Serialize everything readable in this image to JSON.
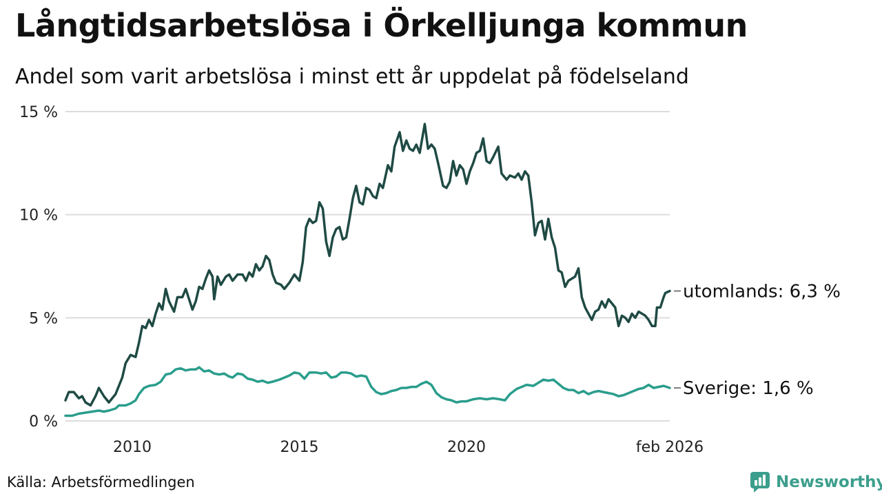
{
  "header": {
    "title": "Långtidsarbetslösa i Örkelljunga kommun",
    "subtitle": "Andel som varit arbetslösa i minst ett år uppdelat på födelseland"
  },
  "footer": {
    "source": "Källa: Arbetsförmedlingen",
    "brand": "Newsworthy"
  },
  "colors": {
    "utomlands": "#1f4a44",
    "sverige": "#2a9d8c",
    "grid": "#dddddd",
    "brand": "#3b9e8c"
  },
  "chart_data": {
    "type": "line",
    "title": "Långtidsarbetslösa i Örkelljunga kommun",
    "subtitle": "Andel som varit arbetslösa i minst ett år uppdelat på födelseland",
    "xlabel": "",
    "ylabel": "",
    "xlim": [
      2008.0,
      2026.083
    ],
    "ylim": [
      0,
      15
    ],
    "x_ticks": [
      {
        "value": 2010,
        "label": "2010"
      },
      {
        "value": 2015,
        "label": "2015"
      },
      {
        "value": 2020,
        "label": "2020"
      },
      {
        "value": 2026.083,
        "label": "feb 2026"
      }
    ],
    "y_ticks": [
      {
        "value": 0,
        "label": "0 %"
      },
      {
        "value": 5,
        "label": "5 %"
      },
      {
        "value": 10,
        "label": "10 %"
      },
      {
        "value": 15,
        "label": "15 %"
      }
    ],
    "grid": true,
    "series": [
      {
        "name": "utomlands",
        "end_label": "utomlands: 6,3 %",
        "points": [
          [
            2008.0,
            1.0
          ],
          [
            2008.1,
            1.4
          ],
          [
            2008.25,
            1.4
          ],
          [
            2008.4,
            1.1
          ],
          [
            2008.5,
            1.2
          ],
          [
            2008.6,
            0.9
          ],
          [
            2008.75,
            0.75
          ],
          [
            2008.9,
            1.2
          ],
          [
            2009.0,
            1.6
          ],
          [
            2009.15,
            1.2
          ],
          [
            2009.3,
            0.9
          ],
          [
            2009.5,
            1.3
          ],
          [
            2009.7,
            2.1
          ],
          [
            2009.8,
            2.8
          ],
          [
            2009.95,
            3.2
          ],
          [
            2010.1,
            3.1
          ],
          [
            2010.2,
            3.8
          ],
          [
            2010.3,
            4.6
          ],
          [
            2010.4,
            4.5
          ],
          [
            2010.5,
            4.9
          ],
          [
            2010.6,
            4.6
          ],
          [
            2010.7,
            5.2
          ],
          [
            2010.8,
            5.7
          ],
          [
            2010.9,
            5.4
          ],
          [
            2011.0,
            6.4
          ],
          [
            2011.1,
            5.8
          ],
          [
            2011.25,
            5.3
          ],
          [
            2011.35,
            6.0
          ],
          [
            2011.5,
            6.0
          ],
          [
            2011.6,
            6.4
          ],
          [
            2011.7,
            5.9
          ],
          [
            2011.8,
            5.4
          ],
          [
            2011.9,
            5.8
          ],
          [
            2012.0,
            6.5
          ],
          [
            2012.1,
            6.4
          ],
          [
            2012.2,
            6.9
          ],
          [
            2012.3,
            7.3
          ],
          [
            2012.4,
            7.0
          ],
          [
            2012.45,
            5.9
          ],
          [
            2012.55,
            7.0
          ],
          [
            2012.65,
            6.6
          ],
          [
            2012.8,
            7.0
          ],
          [
            2012.9,
            7.1
          ],
          [
            2013.0,
            6.8
          ],
          [
            2013.15,
            7.1
          ],
          [
            2013.3,
            7.1
          ],
          [
            2013.4,
            6.8
          ],
          [
            2013.5,
            7.2
          ],
          [
            2013.6,
            7.0
          ],
          [
            2013.7,
            7.6
          ],
          [
            2013.8,
            7.3
          ],
          [
            2013.9,
            7.5
          ],
          [
            2014.0,
            8.0
          ],
          [
            2014.1,
            7.8
          ],
          [
            2014.2,
            7.1
          ],
          [
            2014.3,
            6.7
          ],
          [
            2014.45,
            6.6
          ],
          [
            2014.55,
            6.4
          ],
          [
            2014.7,
            6.7
          ],
          [
            2014.85,
            7.1
          ],
          [
            2015.0,
            6.8
          ],
          [
            2015.1,
            7.7
          ],
          [
            2015.2,
            9.4
          ],
          [
            2015.3,
            9.8
          ],
          [
            2015.4,
            9.6
          ],
          [
            2015.5,
            9.7
          ],
          [
            2015.6,
            10.6
          ],
          [
            2015.7,
            10.3
          ],
          [
            2015.8,
            8.7
          ],
          [
            2015.9,
            8.0
          ],
          [
            2016.0,
            8.9
          ],
          [
            2016.1,
            9.3
          ],
          [
            2016.2,
            9.4
          ],
          [
            2016.3,
            8.8
          ],
          [
            2016.4,
            8.9
          ],
          [
            2016.5,
            9.8
          ],
          [
            2016.6,
            10.8
          ],
          [
            2016.7,
            11.4
          ],
          [
            2016.8,
            10.6
          ],
          [
            2016.9,
            10.5
          ],
          [
            2017.0,
            11.3
          ],
          [
            2017.1,
            11.2
          ],
          [
            2017.2,
            10.9
          ],
          [
            2017.3,
            10.8
          ],
          [
            2017.4,
            11.5
          ],
          [
            2017.5,
            11.3
          ],
          [
            2017.65,
            12.4
          ],
          [
            2017.75,
            12.1
          ],
          [
            2017.85,
            13.3
          ],
          [
            2018.0,
            14.0
          ],
          [
            2018.1,
            13.1
          ],
          [
            2018.2,
            13.6
          ],
          [
            2018.3,
            13.2
          ],
          [
            2018.4,
            13.1
          ],
          [
            2018.5,
            13.4
          ],
          [
            2018.6,
            13.0
          ],
          [
            2018.75,
            14.4
          ],
          [
            2018.85,
            13.2
          ],
          [
            2018.95,
            13.4
          ],
          [
            2019.05,
            13.2
          ],
          [
            2019.15,
            12.5
          ],
          [
            2019.3,
            11.4
          ],
          [
            2019.4,
            11.3
          ],
          [
            2019.5,
            11.6
          ],
          [
            2019.6,
            12.6
          ],
          [
            2019.7,
            11.9
          ],
          [
            2019.8,
            12.4
          ],
          [
            2019.9,
            12.2
          ],
          [
            2020.0,
            11.5
          ],
          [
            2020.1,
            12.1
          ],
          [
            2020.2,
            12.5
          ],
          [
            2020.3,
            13.0
          ],
          [
            2020.4,
            13.1
          ],
          [
            2020.5,
            13.7
          ],
          [
            2020.6,
            12.6
          ],
          [
            2020.7,
            12.5
          ],
          [
            2020.8,
            12.8
          ],
          [
            2020.95,
            13.3
          ],
          [
            2021.05,
            12.0
          ],
          [
            2021.2,
            11.7
          ],
          [
            2021.3,
            11.9
          ],
          [
            2021.45,
            11.8
          ],
          [
            2021.55,
            12.0
          ],
          [
            2021.65,
            11.7
          ],
          [
            2021.75,
            12.1
          ],
          [
            2021.85,
            11.9
          ],
          [
            2021.95,
            10.6
          ],
          [
            2022.05,
            9.0
          ],
          [
            2022.15,
            9.6
          ],
          [
            2022.25,
            9.7
          ],
          [
            2022.35,
            8.8
          ],
          [
            2022.45,
            9.8
          ],
          [
            2022.55,
            8.9
          ],
          [
            2022.65,
            8.4
          ],
          [
            2022.75,
            7.3
          ],
          [
            2022.85,
            7.2
          ],
          [
            2022.95,
            6.5
          ],
          [
            2023.05,
            6.8
          ],
          [
            2023.15,
            6.9
          ],
          [
            2023.25,
            7.0
          ],
          [
            2023.35,
            7.4
          ],
          [
            2023.45,
            6.0
          ],
          [
            2023.55,
            5.5
          ],
          [
            2023.65,
            5.2
          ],
          [
            2023.75,
            4.9
          ],
          [
            2023.85,
            5.3
          ],
          [
            2023.95,
            5.4
          ],
          [
            2024.05,
            5.8
          ],
          [
            2024.15,
            5.5
          ],
          [
            2024.25,
            5.9
          ],
          [
            2024.35,
            5.7
          ],
          [
            2024.45,
            5.5
          ],
          [
            2024.55,
            4.6
          ],
          [
            2024.65,
            5.1
          ],
          [
            2024.75,
            5.0
          ],
          [
            2024.85,
            4.8
          ],
          [
            2024.95,
            5.2
          ],
          [
            2025.05,
            5.0
          ],
          [
            2025.15,
            5.3
          ],
          [
            2025.25,
            5.2
          ],
          [
            2025.35,
            5.1
          ],
          [
            2025.45,
            4.9
          ],
          [
            2025.55,
            4.6
          ],
          [
            2025.65,
            4.6
          ],
          [
            2025.7,
            5.5
          ],
          [
            2025.8,
            5.5
          ],
          [
            2025.9,
            6.0
          ],
          [
            2025.95,
            6.2
          ],
          [
            2026.083,
            6.3
          ]
        ]
      },
      {
        "name": "Sverige",
        "end_label": "Sverige: 1,6 %",
        "points": [
          [
            2008.0,
            0.25
          ],
          [
            2008.2,
            0.25
          ],
          [
            2008.4,
            0.35
          ],
          [
            2008.6,
            0.4
          ],
          [
            2008.8,
            0.45
          ],
          [
            2009.0,
            0.5
          ],
          [
            2009.15,
            0.45
          ],
          [
            2009.3,
            0.5
          ],
          [
            2009.5,
            0.6
          ],
          [
            2009.6,
            0.75
          ],
          [
            2009.8,
            0.75
          ],
          [
            2009.95,
            0.85
          ],
          [
            2010.1,
            1.0
          ],
          [
            2010.2,
            1.3
          ],
          [
            2010.35,
            1.6
          ],
          [
            2010.5,
            1.7
          ],
          [
            2010.7,
            1.75
          ],
          [
            2010.85,
            1.9
          ],
          [
            2011.0,
            2.25
          ],
          [
            2011.15,
            2.3
          ],
          [
            2011.3,
            2.5
          ],
          [
            2011.45,
            2.55
          ],
          [
            2011.6,
            2.45
          ],
          [
            2011.75,
            2.5
          ],
          [
            2011.9,
            2.5
          ],
          [
            2012.0,
            2.6
          ],
          [
            2012.15,
            2.4
          ],
          [
            2012.3,
            2.45
          ],
          [
            2012.45,
            2.3
          ],
          [
            2012.6,
            2.25
          ],
          [
            2012.75,
            2.3
          ],
          [
            2012.9,
            2.15
          ],
          [
            2013.0,
            2.1
          ],
          [
            2013.15,
            2.3
          ],
          [
            2013.3,
            2.25
          ],
          [
            2013.45,
            2.05
          ],
          [
            2013.6,
            2.0
          ],
          [
            2013.75,
            1.9
          ],
          [
            2013.9,
            1.95
          ],
          [
            2014.05,
            1.85
          ],
          [
            2014.2,
            1.9
          ],
          [
            2014.4,
            2.0
          ],
          [
            2014.55,
            2.1
          ],
          [
            2014.7,
            2.2
          ],
          [
            2014.85,
            2.35
          ],
          [
            2015.0,
            2.3
          ],
          [
            2015.15,
            2.05
          ],
          [
            2015.3,
            2.35
          ],
          [
            2015.5,
            2.35
          ],
          [
            2015.65,
            2.3
          ],
          [
            2015.8,
            2.35
          ],
          [
            2015.95,
            2.1
          ],
          [
            2016.1,
            2.15
          ],
          [
            2016.25,
            2.35
          ],
          [
            2016.4,
            2.35
          ],
          [
            2016.55,
            2.3
          ],
          [
            2016.7,
            2.15
          ],
          [
            2016.85,
            2.2
          ],
          [
            2017.0,
            2.15
          ],
          [
            2017.15,
            1.65
          ],
          [
            2017.3,
            1.4
          ],
          [
            2017.45,
            1.3
          ],
          [
            2017.6,
            1.35
          ],
          [
            2017.75,
            1.45
          ],
          [
            2017.9,
            1.5
          ],
          [
            2018.05,
            1.6
          ],
          [
            2018.2,
            1.6
          ],
          [
            2018.35,
            1.65
          ],
          [
            2018.5,
            1.65
          ],
          [
            2018.65,
            1.8
          ],
          [
            2018.8,
            1.9
          ],
          [
            2018.95,
            1.75
          ],
          [
            2019.1,
            1.35
          ],
          [
            2019.25,
            1.15
          ],
          [
            2019.4,
            1.05
          ],
          [
            2019.55,
            1.0
          ],
          [
            2019.7,
            0.9
          ],
          [
            2019.85,
            0.95
          ],
          [
            2020.0,
            0.95
          ],
          [
            2020.2,
            1.05
          ],
          [
            2020.4,
            1.1
          ],
          [
            2020.6,
            1.05
          ],
          [
            2020.8,
            1.1
          ],
          [
            2021.0,
            1.05
          ],
          [
            2021.15,
            1.0
          ],
          [
            2021.3,
            1.3
          ],
          [
            2021.5,
            1.55
          ],
          [
            2021.65,
            1.65
          ],
          [
            2021.8,
            1.75
          ],
          [
            2022.0,
            1.7
          ],
          [
            2022.15,
            1.85
          ],
          [
            2022.3,
            2.0
          ],
          [
            2022.45,
            1.95
          ],
          [
            2022.6,
            2.0
          ],
          [
            2022.75,
            1.8
          ],
          [
            2022.9,
            1.6
          ],
          [
            2023.05,
            1.5
          ],
          [
            2023.2,
            1.5
          ],
          [
            2023.35,
            1.35
          ],
          [
            2023.5,
            1.45
          ],
          [
            2023.65,
            1.3
          ],
          [
            2023.8,
            1.4
          ],
          [
            2023.95,
            1.45
          ],
          [
            2024.1,
            1.4
          ],
          [
            2024.25,
            1.35
          ],
          [
            2024.4,
            1.3
          ],
          [
            2024.55,
            1.2
          ],
          [
            2024.7,
            1.25
          ],
          [
            2024.85,
            1.35
          ],
          [
            2025.0,
            1.45
          ],
          [
            2025.15,
            1.55
          ],
          [
            2025.3,
            1.6
          ],
          [
            2025.45,
            1.75
          ],
          [
            2025.6,
            1.6
          ],
          [
            2025.75,
            1.65
          ],
          [
            2025.9,
            1.7
          ],
          [
            2026.083,
            1.6
          ]
        ]
      }
    ]
  }
}
